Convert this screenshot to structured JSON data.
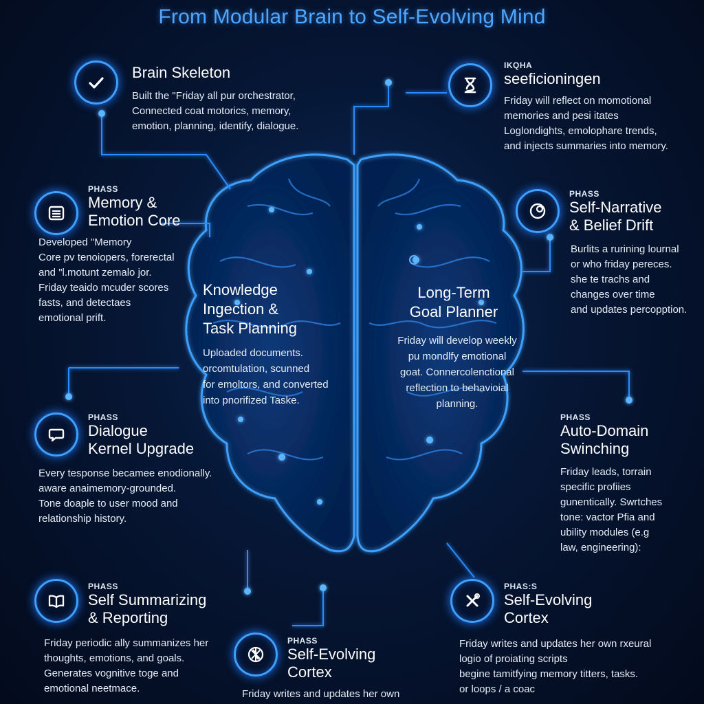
{
  "title": "From Modular Brain to Self-Evolving Mind",
  "nodes": {
    "brain_skeleton": {
      "icon": "checkmark-icon",
      "title": "Brain Skeleton",
      "desc": "Built the \"Friday all pur orchestrator,\nConnected coat motorics, memory,\nemotion, planning, identify, dialogue."
    },
    "reflection": {
      "icon": "hourglass-icon",
      "phase": "IKQHA",
      "title": "seeficioningen",
      "desc": "Friday will reflect on momotional\nmemories and pesi itates\nLoglondights, emolophare trends,\nand injects summaries into memory."
    },
    "memory_emotion": {
      "icon": "list-icon",
      "phase": "PHASS",
      "title": "Memory &\nEmotion Core",
      "desc": "Developed \"Memory\nCore pv tenoiopers, forerectal\nand \"l.motunt zemalo jor.\nFriday teaido mcuder scores\nfasts, and detectaes\nemotional prift."
    },
    "self_narrative": {
      "icon": "crescent-icon",
      "phase": "PHASS",
      "title": "Self-Narrative\n& Belief Drift",
      "desc": "Burlits a rurining lournal\nor who friday pereces.\nshe te  trachs and\nchanges over time\nand updates percopption."
    },
    "knowledge": {
      "title": "Knowledge\nIngection &\nTask Planning",
      "desc": "Uploaded documents.\norcomtulation, scunned\nfor emoltors, and converted\ninto pnorifized Taske."
    },
    "goal_planner": {
      "title": "Long-Term\nGoal Planner",
      "desc": "Friday will develop weekly\npu mondlfy emotional\ngoat.  Connercolenctional\nreflection to behavioial\nplanning."
    },
    "dialogue": {
      "icon": "chat-icon",
      "phase": "PHASS",
      "title": "Dialogue\nKernel Upgrade",
      "desc": "Every tesponse becamee enodionally.\naware anaimemory-grounded.\nTone doaple to user mood and\nrelationship history."
    },
    "auto_domain": {
      "phase": "PHASS",
      "title": "Auto-Domain\nSwinching",
      "desc": "Friday leads, torrain\nspecific profiies\ngunentically. Swrtches\ntone: vactor Pfia and\nubility modules (e.g\nlaw, engineering):"
    },
    "self_summarizing": {
      "icon": "book-icon",
      "phase": "PHASS",
      "title": "Self Summarizing\n& Reporting",
      "desc": "Friday periodic ally summanizes her\nthoughts, emotions, and goals.\nGenerates vognitive toge and\nemotional neetmace."
    },
    "cortex_bottom": {
      "icon": "dna-icon",
      "phase": "PHASS",
      "title": "Self-Evolving\nCortex",
      "desc": "Friday writes and updates her own"
    },
    "cortex_right": {
      "icon": "tools-icon",
      "phase": "PHAS:S",
      "title": "Self-Evolving\nCortex",
      "desc": "Friday writes and updates her own rxeural\nlogio of proiating scripts\nbegine tamitfying memory titters, tasks.\nor loops / a coac"
    }
  },
  "colors": {
    "accent": "#3ea0ff",
    "glow": "#1f7cff",
    "bg": "#061634"
  }
}
